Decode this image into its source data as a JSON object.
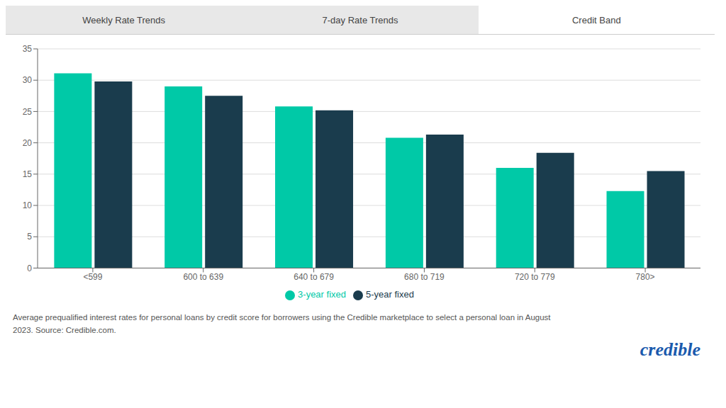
{
  "chart_data": {
    "type": "bar",
    "categories": [
      "<599",
      "600 to 639",
      "640 to 679",
      "680 to 719",
      "720 to 779",
      "780>"
    ],
    "series": [
      {
        "name": "3-year fixed",
        "color": "#00C9A7",
        "values": [
          31.1,
          29.0,
          25.8,
          20.8,
          16.0,
          12.3
        ]
      },
      {
        "name": "5-year fixed",
        "color": "#1A3C4D",
        "values": [
          29.8,
          27.5,
          25.2,
          21.3,
          18.4,
          15.5
        ]
      }
    ],
    "ylim": [
      0,
      35
    ],
    "yticks": [
      0,
      5,
      10,
      15,
      20,
      25,
      30,
      35
    ],
    "grid": true,
    "legend": "bottom",
    "annotations": [
      "Weekly Rate Trends",
      "7-day Rate Trends",
      "Credit Band",
      "Average prequalified interest rates for personal loans by credit score for borrowers using the Credible marketplace to select a personal loan in August",
      "2023. Source: Credible.com.",
      "credible"
    ]
  }
}
